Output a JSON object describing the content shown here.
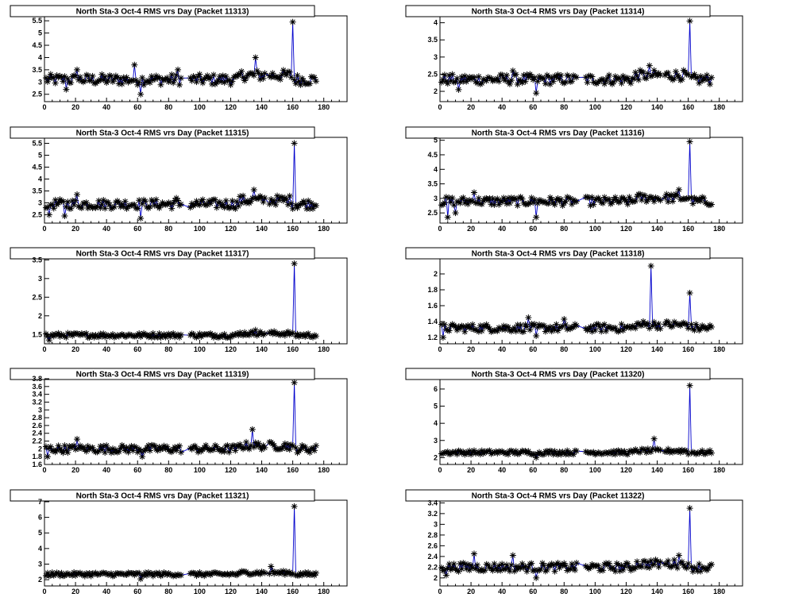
{
  "colors": {
    "line": "#0000cc",
    "marker": "#000000",
    "frame": "#000000",
    "background": "#ffffff"
  },
  "marker": "asterisk",
  "chart_data": [
    {
      "type": "scatter",
      "title": "North Sta-3 Oct-4 RMS vrs Day (Packet 11313)",
      "xlim": [
        0,
        195
      ],
      "ylim": [
        2.2,
        5.7
      ],
      "xticks": [
        0,
        20,
        40,
        60,
        80,
        100,
        120,
        140,
        160,
        180
      ],
      "yticks": [
        "2.5",
        "3",
        "3.5",
        "4",
        "4.5",
        "5",
        "5.5"
      ],
      "baseline": 3.1,
      "noise": 0.22,
      "lows": [
        [
          62,
          2.5
        ],
        [
          14,
          2.7
        ],
        [
          160,
          2.75
        ]
      ],
      "peaks": [
        [
          160,
          5.45
        ],
        [
          136,
          4.0
        ],
        [
          58,
          3.7
        ],
        [
          86,
          3.5
        ],
        [
          21,
          3.5
        ]
      ]
    },
    {
      "type": "scatter",
      "title": "North Sta-3 Oct-4 RMS vrs Day (Packet 11314)",
      "xlim": [
        0,
        195
      ],
      "ylim": [
        1.7,
        4.2
      ],
      "xticks": [
        0,
        20,
        40,
        60,
        80,
        100,
        120,
        140,
        160,
        180
      ],
      "yticks": [
        "2",
        "2.5",
        "3",
        "3.5",
        "4"
      ],
      "baseline": 2.35,
      "noise": 0.15,
      "lows": [
        [
          62,
          1.95
        ],
        [
          12,
          2.05
        ]
      ],
      "peaks": [
        [
          161,
          4.05
        ],
        [
          135,
          2.75
        ],
        [
          47,
          2.6
        ]
      ]
    },
    {
      "type": "scatter",
      "title": "North Sta-3 Oct-4 RMS vrs Day (Packet 11315)",
      "xlim": [
        0,
        195
      ],
      "ylim": [
        2.15,
        5.75
      ],
      "xticks": [
        0,
        20,
        40,
        60,
        80,
        100,
        120,
        140,
        160,
        180
      ],
      "yticks": [
        "2.5",
        "3",
        "3.5",
        "4",
        "4.5",
        "5",
        "5.5"
      ],
      "baseline": 2.95,
      "noise": 0.2,
      "lows": [
        [
          62,
          2.35
        ],
        [
          3,
          2.5
        ],
        [
          13,
          2.45
        ]
      ],
      "peaks": [
        [
          161,
          5.5
        ],
        [
          135,
          3.55
        ],
        [
          21,
          3.35
        ],
        [
          85,
          3.2
        ]
      ]
    },
    {
      "type": "scatter",
      "title": "North Sta-3 Oct-4 RMS vrs Day (Packet 11316)",
      "xlim": [
        0,
        195
      ],
      "ylim": [
        2.15,
        5.1
      ],
      "xticks": [
        0,
        20,
        40,
        60,
        80,
        100,
        120,
        140,
        160,
        180
      ],
      "yticks": [
        "2.5",
        "3",
        "3.5",
        "4",
        "4.5",
        "5"
      ],
      "baseline": 2.9,
      "noise": 0.15,
      "lows": [
        [
          62,
          2.35
        ],
        [
          5,
          2.35
        ],
        [
          10,
          2.5
        ]
      ],
      "peaks": [
        [
          161,
          4.95
        ],
        [
          154,
          3.3
        ],
        [
          22,
          3.2
        ]
      ]
    },
    {
      "type": "scatter",
      "title": "North Sta-3 Oct-4 RMS vrs Day (Packet 11317)",
      "xlim": [
        0,
        195
      ],
      "ylim": [
        1.25,
        3.55
      ],
      "xticks": [
        0,
        20,
        40,
        60,
        80,
        100,
        120,
        140,
        160,
        180
      ],
      "yticks": [
        "1.5",
        "2",
        "2.5",
        "3",
        "3.5"
      ],
      "baseline": 1.48,
      "noise": 0.06,
      "lows": [
        [
          3,
          1.35
        ]
      ],
      "peaks": [
        [
          161,
          3.4
        ],
        [
          136,
          1.62
        ]
      ]
    },
    {
      "type": "scatter",
      "title": "North Sta-3 Oct-4 RMS vrs Day (Packet 11318)",
      "xlim": [
        0,
        195
      ],
      "ylim": [
        1.12,
        2.2
      ],
      "xticks": [
        0,
        20,
        40,
        60,
        80,
        100,
        120,
        140,
        160,
        180
      ],
      "yticks": [
        "1.2",
        "1.4",
        "1.6",
        "1.8",
        "2"
      ],
      "baseline": 1.32,
      "noise": 0.05,
      "lows": [
        [
          2,
          1.2
        ],
        [
          62,
          1.22
        ]
      ],
      "peaks": [
        [
          136,
          2.1
        ],
        [
          161,
          1.76
        ],
        [
          80,
          1.43
        ],
        [
          57,
          1.45
        ]
      ]
    },
    {
      "type": "scatter",
      "title": "North Sta-3 Oct-4 RMS vrs Day (Packet 11319)",
      "xlim": [
        0,
        195
      ],
      "ylim": [
        1.6,
        3.8
      ],
      "xticks": [
        0,
        20,
        40,
        60,
        80,
        100,
        120,
        140,
        160,
        180
      ],
      "yticks": [
        "1.6",
        "1.8",
        "2",
        "2.2",
        "2.4",
        "2.6",
        "2.8",
        "3",
        "3.2",
        "3.4",
        "3.6",
        "3.8"
      ],
      "baseline": 2.0,
      "noise": 0.1,
      "lows": [
        [
          63,
          1.8
        ],
        [
          2,
          1.8
        ]
      ],
      "peaks": [
        [
          161,
          3.7
        ],
        [
          134,
          2.5
        ],
        [
          21,
          2.25
        ]
      ]
    },
    {
      "type": "scatter",
      "title": "North Sta-3 Oct-4 RMS vrs Day (Packet 11320)",
      "xlim": [
        0,
        195
      ],
      "ylim": [
        1.6,
        6.6
      ],
      "xticks": [
        0,
        20,
        40,
        60,
        80,
        100,
        120,
        140,
        160,
        180
      ],
      "yticks": [
        "2",
        "3",
        "4",
        "5",
        "6"
      ],
      "baseline": 2.3,
      "noise": 0.12,
      "lows": [
        [
          62,
          2.0
        ]
      ],
      "peaks": [
        [
          161,
          6.2
        ],
        [
          138,
          3.1
        ]
      ]
    },
    {
      "type": "scatter",
      "title": "North Sta-3 Oct-4 RMS vrs Day (Packet 11321)",
      "xlim": [
        0,
        195
      ],
      "ylim": [
        1.6,
        7.1
      ],
      "xticks": [
        0,
        20,
        40,
        60,
        80,
        100,
        120,
        140,
        160,
        180
      ],
      "yticks": [
        "2",
        "3",
        "4",
        "5",
        "6",
        "7"
      ],
      "baseline": 2.35,
      "noise": 0.12,
      "lows": [
        [
          62,
          2.05
        ]
      ],
      "peaks": [
        [
          161,
          6.7
        ],
        [
          146,
          2.85
        ]
      ]
    },
    {
      "type": "scatter",
      "title": "North Sta-3 Oct-4 RMS vrs Day (Packet 11322)",
      "xlim": [
        0,
        195
      ],
      "ylim": [
        1.85,
        3.45
      ],
      "xticks": [
        0,
        20,
        40,
        60,
        80,
        100,
        120,
        140,
        160,
        180
      ],
      "yticks": [
        "2",
        "2.2",
        "2.4",
        "2.6",
        "2.8",
        "3",
        "3.2",
        "3.4"
      ],
      "baseline": 2.2,
      "noise": 0.08,
      "lows": [
        [
          62,
          2.0
        ],
        [
          4,
          2.05
        ]
      ],
      "peaks": [
        [
          161,
          3.3
        ],
        [
          154,
          2.42
        ],
        [
          22,
          2.45
        ],
        [
          47,
          2.42
        ]
      ]
    }
  ]
}
